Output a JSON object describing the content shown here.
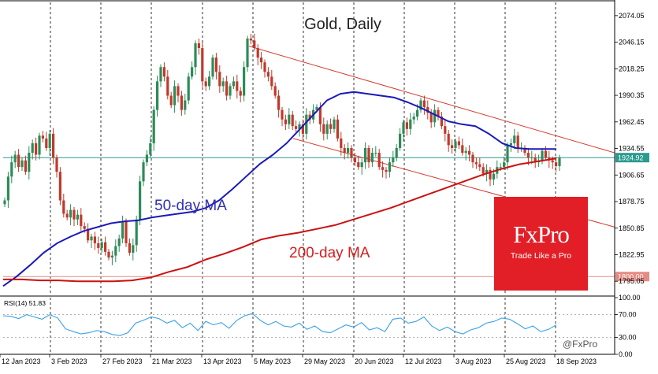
{
  "chart_data": [
    {
      "type": "line",
      "subtype": "candlestick",
      "title": "Gold, Daily",
      "xlabel": "",
      "ylabel": "",
      "x_ticks": [
        "12 Jan 2023",
        "3 Feb 2023",
        "27 Feb 2023",
        "21 Mar 2023",
        "13 Apr 2023",
        "5 May 2023",
        "29 May 2023",
        "20 Jun 2023",
        "12 Jul 2023",
        "3 Aug 2023",
        "25 Aug 2023",
        "18 Sep 2023"
      ],
      "y_ticks": [
        "2074.05",
        "2046.15",
        "2018.25",
        "1990.35",
        "1962.45",
        "1934.55",
        "1906.65",
        "1878.75",
        "1850.85",
        "1822.95",
        "1795.05"
      ],
      "ylim": [
        1782,
        2088
      ],
      "grid": "vertical dashed",
      "price_closes": [
        1880,
        1905,
        1920,
        1928,
        1915,
        1922,
        1910,
        1930,
        1940,
        1928,
        1948,
        1945,
        1935,
        1950,
        1925,
        1910,
        1880,
        1866,
        1862,
        1870,
        1860,
        1865,
        1853,
        1850,
        1838,
        1842,
        1835,
        1830,
        1836,
        1826,
        1820,
        1822,
        1832,
        1840,
        1858,
        1835,
        1825,
        1833,
        1860,
        1900,
        1920,
        1928,
        1940,
        1975,
        2005,
        2020,
        2010,
        1990,
        1980,
        2000,
        1990,
        1975,
        1985,
        2010,
        2020,
        2045,
        2040,
        2005,
        2000,
        2010,
        2030,
        2015,
        2000,
        2005,
        1990,
        2000,
        2005,
        1995,
        1990,
        2020,
        2050,
        2048,
        2040,
        2030,
        2025,
        2015,
        2010,
        2000,
        1990,
        1975,
        1965,
        1960,
        1970,
        1958,
        1955,
        1960,
        1950,
        1970,
        1965,
        1975,
        1978,
        1960,
        1950,
        1960,
        1955,
        1965,
        1945,
        1935,
        1930,
        1935,
        1925,
        1920,
        1915,
        1920,
        1935,
        1920,
        1930,
        1930,
        1915,
        1912,
        1910,
        1920,
        1925,
        1935,
        1950,
        1962,
        1955,
        1965,
        1968,
        1975,
        1985,
        1978,
        1972,
        1962,
        1975,
        1968,
        1958,
        1950,
        1938,
        1935,
        1942,
        1938,
        1930,
        1932,
        1928,
        1920,
        1918,
        1915,
        1908,
        1912,
        1902,
        1908,
        1915,
        1915,
        1920,
        1938,
        1940,
        1948,
        1935,
        1935,
        1930,
        1925,
        1925,
        1920,
        1922,
        1932,
        1925,
        1922,
        1920,
        1916,
        1924.92
      ],
      "series": [
        {
          "name": "50-day MA",
          "color": "#1a1ab8",
          "values": [
            1790,
            1800,
            1812,
            1825,
            1835,
            1842,
            1848,
            1852,
            1856,
            1858,
            1859,
            1862,
            1864,
            1866,
            1868,
            1872,
            1880,
            1892,
            1905,
            1918,
            1928,
            1940,
            1955,
            1970,
            1985,
            1992,
            1994,
            1992,
            1990,
            1988,
            1983,
            1977,
            1970,
            1963,
            1960,
            1958,
            1950,
            1940,
            1935,
            1934,
            1934,
            1934
          ]
        },
        {
          "name": "200-day MA",
          "color": "#cc1111",
          "values": [
            1797,
            1797,
            1796,
            1796,
            1795,
            1795,
            1795,
            1796,
            1799,
            1805,
            1810,
            1818,
            1824,
            1831,
            1839,
            1843,
            1846,
            1850,
            1854,
            1860,
            1866,
            1872,
            1879,
            1886,
            1893,
            1900,
            1907,
            1913,
            1918,
            1921,
            1924
          ]
        }
      ],
      "levels": [
        {
          "label": "1924.92",
          "value": 1924.92,
          "color": "#2a9b8e"
        },
        {
          "label": "1800.00",
          "value": 1800.0,
          "color": "#e58b84"
        }
      ],
      "annotations": [
        {
          "text": "50-day MA",
          "color": "#3030b0"
        },
        {
          "text": "200-day MA",
          "color": "#d42020"
        }
      ],
      "channel": {
        "color": "#d33b2f",
        "upper": [
          [
            2042,
            1930
          ]
        ],
        "lower": [
          [
            1945,
            1852
          ]
        ]
      },
      "logo": {
        "main": "FxPro",
        "tagline": "Trade Like a Pro",
        "color": "#e21e26"
      },
      "watermark": "@FxPro"
    },
    {
      "type": "line",
      "title": "RSI(14) 51.83",
      "ylim": [
        0,
        100
      ],
      "y_ticks": [
        "100.00",
        "70.00",
        "30.00",
        "0.00"
      ],
      "reference_lines": [
        70,
        30
      ],
      "series": [
        {
          "name": "RSI(14) 51.83",
          "color": "#3aa0e6",
          "values": [
            68,
            67,
            63,
            70,
            66,
            62,
            70,
            64,
            45,
            40,
            36,
            38,
            42,
            40,
            35,
            33,
            38,
            55,
            60,
            66,
            63,
            55,
            60,
            47,
            55,
            42,
            58,
            52,
            56,
            46,
            60,
            68,
            72,
            60,
            52,
            58,
            50,
            48,
            55,
            44,
            50,
            40,
            38,
            45,
            52,
            48,
            56,
            43,
            47,
            40,
            62,
            64,
            55,
            58,
            66,
            50,
            42,
            48,
            40,
            36,
            43,
            47,
            55,
            58,
            64,
            62,
            54,
            45,
            50,
            40,
            44,
            52
          ]
        }
      ]
    }
  ]
}
